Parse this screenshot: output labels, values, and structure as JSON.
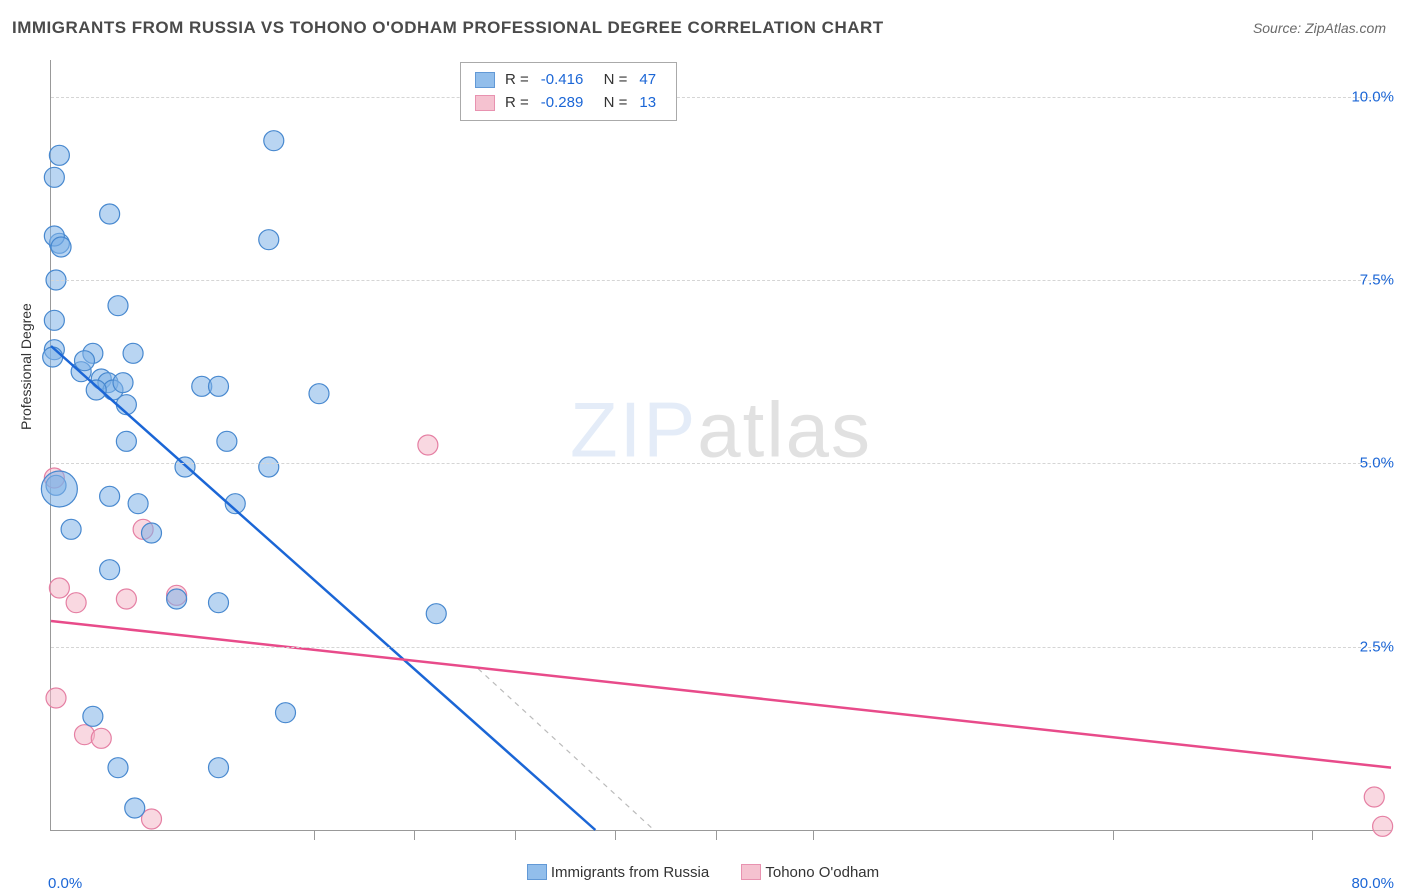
{
  "title": "IMMIGRANTS FROM RUSSIA VS TOHONO O'ODHAM PROFESSIONAL DEGREE CORRELATION CHART",
  "source": "Source: ZipAtlas.com",
  "ylabel": "Professional Degree",
  "watermark_bold": "ZIP",
  "watermark_thin": "atlas",
  "chart": {
    "type": "scatter",
    "xlim": [
      0,
      80
    ],
    "ylim": [
      0,
      10.5
    ],
    "x_ticks_labeled": [
      {
        "v": 0,
        "label": "0.0%"
      },
      {
        "v": 80,
        "label": "80.0%"
      }
    ],
    "x_ticks_minor": [
      15.7,
      21.7,
      27.7,
      33.7,
      39.7,
      45.5,
      63.4,
      75.3
    ],
    "y_ticks": [
      {
        "v": 2.5,
        "label": "2.5%"
      },
      {
        "v": 5.0,
        "label": "5.0%"
      },
      {
        "v": 7.5,
        "label": "7.5%"
      },
      {
        "v": 10.0,
        "label": "10.0%"
      }
    ],
    "background": "#ffffff",
    "grid_color": "#d5d5d5",
    "axis_color": "#999999",
    "series": {
      "blue": {
        "label": "Immigrants from Russia",
        "R": "-0.416",
        "N": "47",
        "fill": "#7fb3e8",
        "fill_opacity": 0.55,
        "stroke": "#4788cf",
        "line_color": "#1b66d6",
        "radius": 10,
        "points": [
          [
            0.5,
            9.2
          ],
          [
            0.2,
            8.9
          ],
          [
            0.5,
            8.0
          ],
          [
            0.2,
            8.1
          ],
          [
            0.6,
            7.95
          ],
          [
            3.5,
            8.4
          ],
          [
            13.3,
            9.4
          ],
          [
            0.3,
            7.5
          ],
          [
            0.2,
            6.95
          ],
          [
            4.0,
            7.15
          ],
          [
            0.2,
            6.55
          ],
          [
            0.1,
            6.45
          ],
          [
            2.5,
            6.5
          ],
          [
            4.9,
            6.5
          ],
          [
            13.0,
            8.05
          ],
          [
            1.8,
            6.25
          ],
          [
            2.0,
            6.4
          ],
          [
            3.0,
            6.15
          ],
          [
            3.4,
            6.1
          ],
          [
            3.7,
            6.0
          ],
          [
            4.3,
            6.1
          ],
          [
            2.7,
            6.0
          ],
          [
            4.5,
            5.8
          ],
          [
            9.0,
            6.05
          ],
          [
            10.0,
            6.05
          ],
          [
            16.0,
            5.95
          ],
          [
            4.5,
            5.3
          ],
          [
            10.5,
            5.3
          ],
          [
            8.0,
            4.95
          ],
          [
            13.0,
            4.95
          ],
          [
            0.3,
            4.7
          ],
          [
            3.5,
            4.55
          ],
          [
            5.2,
            4.45
          ],
          [
            11.0,
            4.45
          ],
          [
            1.2,
            4.1
          ],
          [
            6.0,
            4.05
          ],
          [
            3.5,
            3.55
          ],
          [
            7.5,
            3.15
          ],
          [
            10.0,
            3.1
          ],
          [
            23.0,
            2.95
          ],
          [
            2.5,
            1.55
          ],
          [
            14.0,
            1.6
          ],
          [
            4.0,
            0.85
          ],
          [
            10.0,
            0.85
          ],
          [
            5.0,
            0.3
          ]
        ],
        "big_point": [
          0.5,
          4.65
        ],
        "big_radius": 18,
        "trend": {
          "x1": 0,
          "y1": 6.6,
          "x2": 32.5,
          "y2": 0,
          "width": 2.5
        },
        "trend_dash": {
          "x1": 25.5,
          "y1": 2.2,
          "x2": 36.0,
          "y2": 0
        }
      },
      "pink": {
        "label": "Tohono O'odham",
        "R": "-0.289",
        "N": "13",
        "fill": "#f4b8c8",
        "fill_opacity": 0.55,
        "stroke": "#e57fa3",
        "line_color": "#e84b8a",
        "radius": 10,
        "points": [
          [
            22.5,
            5.25
          ],
          [
            0.2,
            4.8
          ],
          [
            5.5,
            4.1
          ],
          [
            0.5,
            3.3
          ],
          [
            1.5,
            3.1
          ],
          [
            4.5,
            3.15
          ],
          [
            7.5,
            3.2
          ],
          [
            0.3,
            1.8
          ],
          [
            2.0,
            1.3
          ],
          [
            3.0,
            1.25
          ],
          [
            79.0,
            0.45
          ],
          [
            6.0,
            0.15
          ],
          [
            79.5,
            0.05
          ]
        ],
        "trend": {
          "x1": 0,
          "y1": 2.85,
          "x2": 80,
          "y2": 0.85,
          "width": 2.5
        }
      }
    }
  },
  "colors": {
    "tick_label": "#1b66d6",
    "text": "#333333"
  }
}
